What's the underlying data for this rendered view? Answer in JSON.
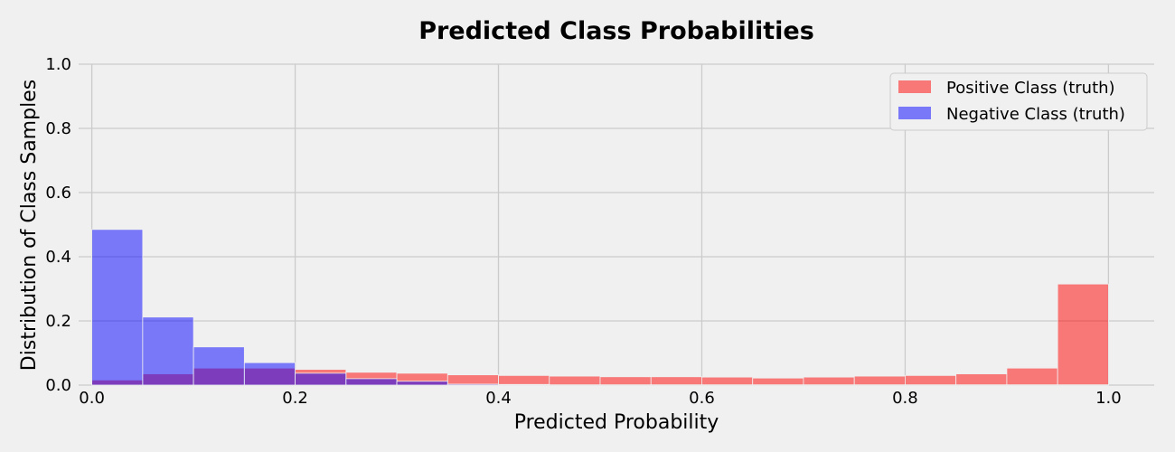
{
  "chart_data": {
    "type": "bar",
    "title": "Predicted Class Probabilities",
    "xlabel": "Predicted Probability",
    "ylabel": "Distribution of Class Samples",
    "xlim": [
      -0.013,
      1.045
    ],
    "ylim": [
      0,
      1.0
    ],
    "xticks": [
      "0.0",
      "0.2",
      "0.4",
      "0.6",
      "0.8",
      "1.0"
    ],
    "yticks": [
      "0.0",
      "0.2",
      "0.4",
      "0.6",
      "0.8",
      "1.0"
    ],
    "grid": true,
    "legend_position": "top-right",
    "bin_width": 0.05,
    "bin_starts": [
      0.0,
      0.05,
      0.1,
      0.15,
      0.2,
      0.25,
      0.3,
      0.35,
      0.4,
      0.45,
      0.5,
      0.55,
      0.6,
      0.65,
      0.7,
      0.75,
      0.8,
      0.85,
      0.9,
      0.95
    ],
    "series": [
      {
        "name": "Positive Class (truth)",
        "color": "#ff0000",
        "opacity": 0.5,
        "values": [
          0.016,
          0.035,
          0.053,
          0.053,
          0.049,
          0.04,
          0.037,
          0.032,
          0.03,
          0.028,
          0.026,
          0.026,
          0.025,
          0.022,
          0.025,
          0.028,
          0.03,
          0.035,
          0.053,
          0.315
        ]
      },
      {
        "name": "Negative Class (truth)",
        "color": "#0000ff",
        "opacity": 0.5,
        "values": [
          0.485,
          0.212,
          0.119,
          0.07,
          0.037,
          0.02,
          0.012,
          0.003,
          0.002,
          0.001,
          0.001,
          0.001,
          0.001,
          0.001,
          0.001,
          0.001,
          0.001,
          0.001,
          0.001,
          0.001
        ]
      }
    ]
  }
}
